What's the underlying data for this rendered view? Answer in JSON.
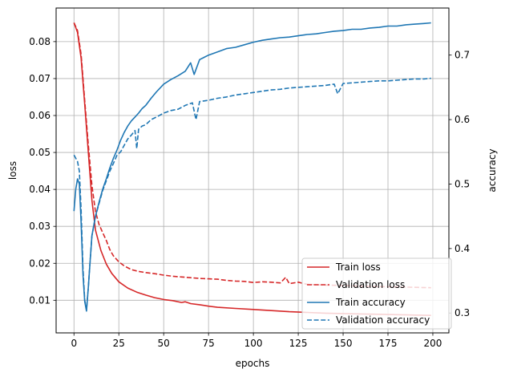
{
  "chart_data": {
    "type": "line",
    "xlabel": "epochs",
    "ylabel_left": "loss",
    "ylabel_right": "accuracy",
    "xlim": [
      -9.95,
      208.95
    ],
    "ylim_left": [
      0.00117,
      0.08909
    ],
    "ylim_right": [
      0.2692,
      0.773
    ],
    "xticks": [
      0,
      25,
      50,
      75,
      100,
      125,
      150,
      175,
      200
    ],
    "yticks_left": [
      0.01,
      0.02,
      0.03,
      0.04,
      0.05,
      0.06,
      0.07,
      0.08
    ],
    "yticks_right": [
      0.3,
      0.4,
      0.5,
      0.6,
      0.7
    ],
    "grid": true,
    "legend_position": "lower-right",
    "legend": [
      "Train loss",
      "Validation loss",
      "Train accuracy",
      "Validation accuracy"
    ],
    "colors": {
      "loss": "#d62728",
      "accuracy": "#1f77b4"
    },
    "series": [
      {
        "name": "Train loss",
        "axis": "left",
        "style": "solid",
        "color": "#d62728",
        "x": [
          0,
          2,
          4,
          6,
          8,
          10,
          12,
          15,
          18,
          21,
          25,
          30,
          35,
          40,
          45,
          50,
          55,
          60,
          62,
          65,
          70,
          75,
          80,
          90,
          100,
          110,
          120,
          130,
          140,
          150,
          160,
          170,
          180,
          190,
          199
        ],
        "y": [
          0.0851,
          0.0825,
          0.0755,
          0.063,
          0.05,
          0.037,
          0.029,
          0.0235,
          0.0198,
          0.0173,
          0.015,
          0.0133,
          0.0122,
          0.0114,
          0.0107,
          0.0102,
          0.0099,
          0.0094,
          0.0096,
          0.0091,
          0.0088,
          0.0084,
          0.0081,
          0.0078,
          0.0075,
          0.0072,
          0.0069,
          0.0067,
          0.0065,
          0.0064,
          0.0063,
          0.0062,
          0.0061,
          0.006,
          0.0059
        ]
      },
      {
        "name": "Validation loss",
        "axis": "left",
        "style": "dashed",
        "color": "#d62728",
        "x": [
          0,
          2,
          4,
          6,
          8,
          10,
          12,
          14,
          16,
          18,
          20,
          22,
          25,
          28,
          32,
          36,
          40,
          45,
          50,
          55,
          60,
          65,
          70,
          75,
          80,
          85,
          90,
          95,
          100,
          105,
          110,
          115,
          118,
          120,
          125,
          130,
          140,
          150,
          160,
          170,
          180,
          190,
          199
        ],
        "y": [
          0.0851,
          0.083,
          0.0765,
          0.064,
          0.052,
          0.041,
          0.034,
          0.0305,
          0.0283,
          0.0262,
          0.0237,
          0.022,
          0.0204,
          0.0193,
          0.0183,
          0.0178,
          0.0175,
          0.0172,
          0.0168,
          0.0165,
          0.0163,
          0.0161,
          0.0159,
          0.0158,
          0.0157,
          0.0154,
          0.0152,
          0.0151,
          0.0148,
          0.015,
          0.0149,
          0.0147,
          0.0162,
          0.0145,
          0.0149,
          0.0143,
          0.0141,
          0.014,
          0.0138,
          0.0137,
          0.0136,
          0.0135,
          0.0134
        ]
      },
      {
        "name": "Train accuracy",
        "axis": "right",
        "style": "solid",
        "color": "#1f77b4",
        "x": [
          0,
          1,
          2,
          3,
          4,
          5,
          6,
          7,
          8,
          9,
          10,
          12,
          14,
          16,
          18,
          20,
          22,
          24,
          26,
          28,
          30,
          32,
          34,
          36,
          38,
          40,
          43,
          46,
          50,
          54,
          58,
          62,
          65,
          67,
          70,
          75,
          80,
          85,
          90,
          95,
          100,
          105,
          110,
          115,
          120,
          125,
          130,
          135,
          140,
          145,
          150,
          155,
          160,
          165,
          170,
          175,
          180,
          185,
          190,
          195,
          199
        ],
        "y": [
          0.458,
          0.492,
          0.508,
          0.5,
          0.44,
          0.36,
          0.318,
          0.303,
          0.34,
          0.38,
          0.42,
          0.45,
          0.472,
          0.492,
          0.508,
          0.525,
          0.54,
          0.553,
          0.568,
          0.58,
          0.59,
          0.598,
          0.604,
          0.61,
          0.617,
          0.622,
          0.633,
          0.643,
          0.655,
          0.662,
          0.668,
          0.675,
          0.688,
          0.67,
          0.693,
          0.7,
          0.705,
          0.71,
          0.712,
          0.716,
          0.72,
          0.723,
          0.725,
          0.727,
          0.728,
          0.73,
          0.732,
          0.733,
          0.735,
          0.737,
          0.738,
          0.74,
          0.74,
          0.742,
          0.743,
          0.745,
          0.745,
          0.747,
          0.748,
          0.749,
          0.75
        ]
      },
      {
        "name": "Validation accuracy",
        "axis": "right",
        "style": "dashed",
        "color": "#1f77b4",
        "x": [
          0,
          1,
          2,
          3,
          4,
          5,
          6,
          7,
          8,
          9,
          10,
          12,
          14,
          16,
          18,
          20,
          22,
          24,
          26,
          28,
          30,
          32,
          34,
          35,
          36,
          38,
          40,
          43,
          46,
          50,
          54,
          58,
          62,
          66,
          68,
          70,
          75,
          80,
          85,
          90,
          95,
          100,
          105,
          110,
          115,
          120,
          125,
          130,
          135,
          140,
          145,
          147,
          150,
          155,
          160,
          165,
          170,
          175,
          180,
          185,
          190,
          195,
          199
        ],
        "y": [
          0.545,
          0.54,
          0.535,
          0.52,
          0.46,
          0.37,
          0.32,
          0.305,
          0.34,
          0.38,
          0.42,
          0.45,
          0.47,
          0.49,
          0.505,
          0.52,
          0.532,
          0.545,
          0.55,
          0.56,
          0.57,
          0.576,
          0.583,
          0.555,
          0.585,
          0.59,
          0.592,
          0.6,
          0.604,
          0.61,
          0.614,
          0.616,
          0.622,
          0.626,
          0.6,
          0.628,
          0.63,
          0.633,
          0.635,
          0.638,
          0.64,
          0.642,
          0.644,
          0.646,
          0.647,
          0.649,
          0.65,
          0.651,
          0.652,
          0.653,
          0.655,
          0.64,
          0.656,
          0.657,
          0.658,
          0.659,
          0.66,
          0.66,
          0.661,
          0.662,
          0.663,
          0.663,
          0.664
        ]
      }
    ]
  }
}
